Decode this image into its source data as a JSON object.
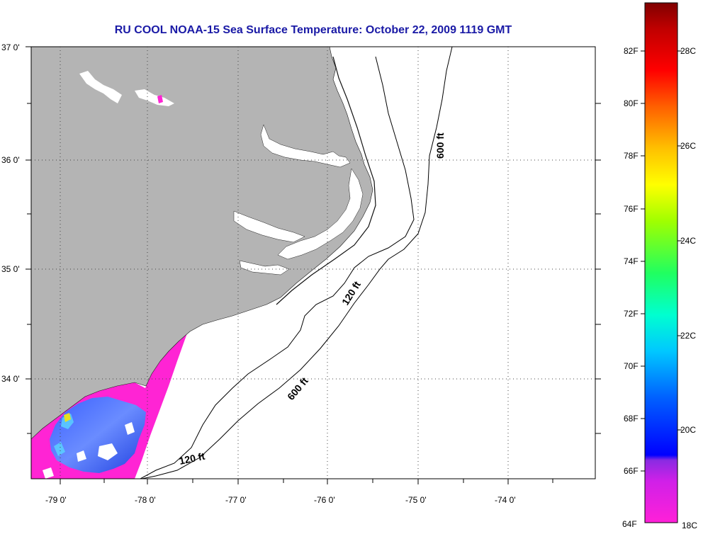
{
  "title": "RU COOL  NOAA-15  Sea Surface Temperature:  October 22, 2009 1119 GMT",
  "map": {
    "lon_labels": [
      "-79 0'",
      "-78 0'",
      "-77 0'",
      "-76 0'",
      "-75 0'",
      "-74 0'"
    ],
    "lat_labels": [
      "37 0'",
      "36 0'",
      "35 0'",
      "34 0'"
    ],
    "contour_labels": [
      "600 ft",
      "120 ft",
      "600 ft",
      "120 ft"
    ],
    "land_color": "#b4b4b4",
    "grid": "dotted"
  },
  "colorbar": {
    "fahrenheit_labels": [
      "82F",
      "80F",
      "78F",
      "76F",
      "74F",
      "72F",
      "70F",
      "68F",
      "66F",
      "64F"
    ],
    "celsius_labels": [
      "28C",
      "26C",
      "24C",
      "22C",
      "20C",
      "18C"
    ],
    "range_f": [
      64,
      84
    ],
    "range_c": [
      18,
      29
    ]
  }
}
